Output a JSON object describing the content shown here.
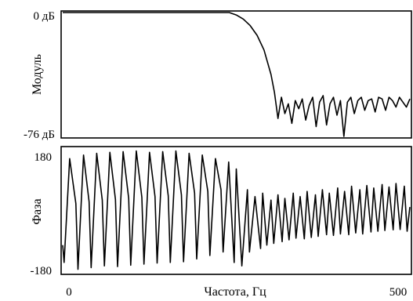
{
  "chart_data": [
    {
      "type": "line",
      "ylabel": "Модуль",
      "y_tick_labels": [
        "0 дБ",
        "-76 дБ"
      ],
      "ylim": [
        -76,
        0
      ],
      "xlim": [
        0,
        500
      ],
      "grid": false,
      "series": [
        {
          "x": [
            0,
            50,
            100,
            150,
            200,
            240,
            250,
            260,
            270,
            280,
            290,
            300,
            305,
            310,
            315,
            320,
            325,
            330,
            335,
            340,
            345,
            350,
            355,
            360,
            365,
            370,
            375,
            380,
            385,
            390,
            395,
            400,
            405,
            410,
            415,
            420,
            425,
            430,
            435,
            440,
            445,
            450,
            455,
            460,
            465,
            470,
            475,
            480,
            485,
            490,
            495,
            500
          ],
          "values": [
            0,
            0,
            0,
            0,
            0,
            0,
            -1.5,
            -4,
            -8,
            -14,
            -23,
            -38,
            -49,
            -65,
            -52,
            -62,
            -56,
            -68,
            -54,
            -59,
            -53,
            -66,
            -57,
            -52,
            -70,
            -55,
            -51,
            -69,
            -56,
            -52,
            -63,
            -54,
            -76,
            -55,
            -52,
            -62,
            -54,
            -52,
            -60,
            -54,
            -53,
            -61,
            -52,
            -53,
            -60,
            -52,
            -54,
            -58,
            -52,
            -55,
            -58,
            -53
          ]
        }
      ]
    },
    {
      "type": "line",
      "xlabel": "Частота, Гц",
      "ylabel": "Фаза",
      "y_tick_labels": [
        "180",
        "-180"
      ],
      "x_tick_labels": [
        "0",
        "500"
      ],
      "ylim": [
        -180,
        180
      ],
      "xlim": [
        0,
        500
      ],
      "grid": false,
      "series": [
        {
          "x": [
            0,
            2,
            10,
            19,
            22,
            30,
            38,
            41,
            49,
            57,
            60,
            68,
            76,
            79,
            87,
            95,
            98,
            106,
            114,
            117,
            125,
            133,
            136,
            144,
            152,
            155,
            163,
            171,
            174,
            182,
            190,
            193,
            201,
            209,
            212,
            220,
            228,
            231,
            239,
            247,
            250,
            258,
            266,
            269,
            277,
            285,
            288,
            294,
            300,
            304,
            310,
            316,
            320,
            326,
            332,
            336,
            342,
            348,
            352,
            358,
            364,
            368,
            374,
            380,
            384,
            390,
            396,
            400,
            406,
            412,
            416,
            422,
            428,
            432,
            438,
            444,
            448,
            454,
            460,
            464,
            470,
            476,
            480,
            486,
            492,
            496,
            500
          ],
          "values": [
            -100,
            -150,
            150,
            20,
            -170,
            160,
            25,
            -165,
            165,
            30,
            -160,
            168,
            32,
            -162,
            170,
            35,
            -158,
            172,
            38,
            -155,
            168,
            40,
            -152,
            170,
            42,
            -150,
            172,
            45,
            -148,
            165,
            50,
            -140,
            160,
            55,
            -130,
            150,
            60,
            -120,
            140,
            -150,
            120,
            -160,
            60,
            -120,
            40,
            -110,
            50,
            -100,
            30,
            -95,
            45,
            -90,
            35,
            -85,
            50,
            -80,
            40,
            -82,
            55,
            -78,
            45,
            -75,
            60,
            -70,
            50,
            -72,
            65,
            -68,
            55,
            -70,
            70,
            -65,
            60,
            -68,
            72,
            -62,
            65,
            -60,
            75,
            -58,
            68,
            -56,
            78,
            -55,
            70,
            -60,
            10
          ]
        }
      ]
    }
  ]
}
